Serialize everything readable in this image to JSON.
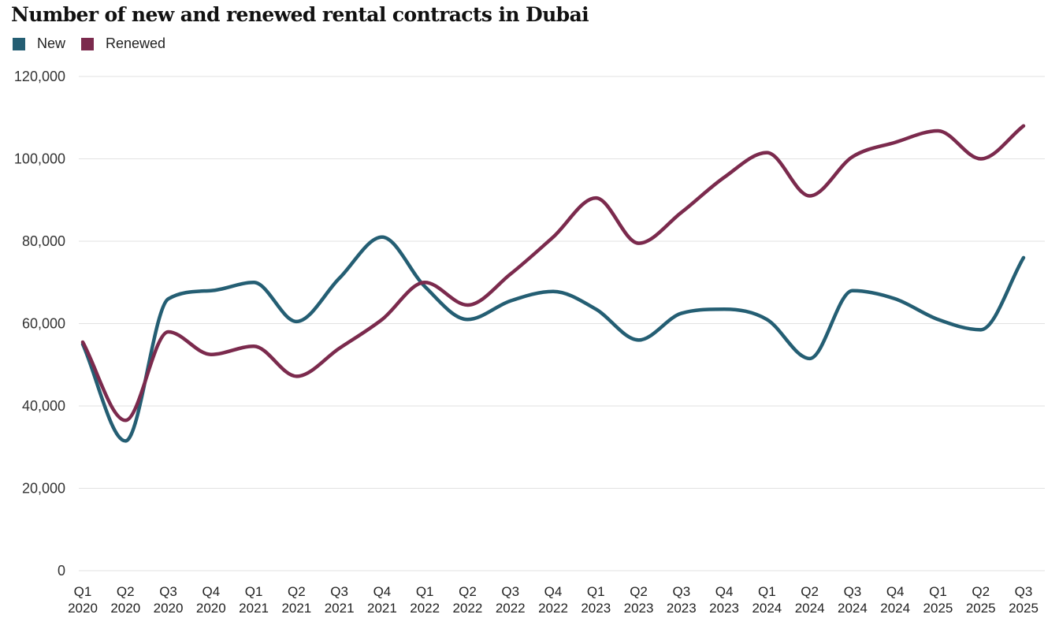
{
  "chart_data": {
    "type": "line",
    "title": "Number of new and renewed rental contracts in Dubai",
    "xlabel": "",
    "ylabel": "",
    "categories": [
      [
        "Q1",
        "2020"
      ],
      [
        "Q2",
        "2020"
      ],
      [
        "Q3",
        "2020"
      ],
      [
        "Q4",
        "2020"
      ],
      [
        "Q1",
        "2021"
      ],
      [
        "Q2",
        "2021"
      ],
      [
        "Q3",
        "2021"
      ],
      [
        "Q4",
        "2021"
      ],
      [
        "Q1",
        "2022"
      ],
      [
        "Q2",
        "2022"
      ],
      [
        "Q3",
        "2022"
      ],
      [
        "Q4",
        "2022"
      ],
      [
        "Q1",
        "2023"
      ],
      [
        "Q2",
        "2023"
      ],
      [
        "Q3",
        "2023"
      ],
      [
        "Q4",
        "2023"
      ],
      [
        "Q1",
        "2024"
      ],
      [
        "Q2",
        "2024"
      ],
      [
        "Q3",
        "2024"
      ],
      [
        "Q4",
        "2024"
      ],
      [
        "Q1",
        "2025"
      ],
      [
        "Q2",
        "2025"
      ],
      [
        "Q3",
        "2025"
      ]
    ],
    "series": [
      {
        "name": "New",
        "color": "#245E73",
        "values": [
          55000,
          31500,
          66000,
          68000,
          70000,
          60500,
          71000,
          81000,
          69000,
          61000,
          65500,
          67800,
          63500,
          56000,
          62500,
          63500,
          61000,
          51500,
          68000,
          66000,
          61000,
          58500,
          76000
        ]
      },
      {
        "name": "Renewed",
        "color": "#7B2A4D",
        "values": [
          55500,
          36500,
          58000,
          52500,
          54500,
          47200,
          54000,
          61000,
          70000,
          64500,
          72000,
          81000,
          90500,
          79500,
          87000,
          95500,
          101500,
          91000,
          100500,
          104000,
          106800,
          100000,
          108000
        ]
      }
    ],
    "ylim": [
      0,
      120000
    ],
    "yticks": [
      0,
      20000,
      40000,
      60000,
      80000,
      100000,
      120000
    ],
    "ytick_labels": [
      "0",
      "20,000",
      "40,000",
      "60,000",
      "80,000",
      "100,000",
      "120,000"
    ],
    "grid": true,
    "legend_position": "top-left"
  }
}
